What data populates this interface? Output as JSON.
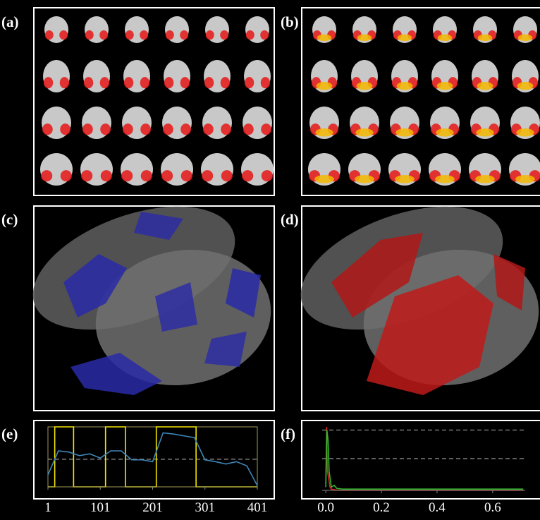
{
  "panel_labels": [
    "(a)",
    "(b)",
    "(c)",
    "(d)",
    "(e)",
    "(f)"
  ],
  "chart_data": [
    {
      "type": "line",
      "xlim": [
        1,
        401
      ],
      "xticks": [
        1,
        101,
        201,
        301,
        401
      ],
      "ylim": [
        0,
        1
      ],
      "reference_lines": [
        0.46
      ],
      "series": [
        {
          "color": "#f2e600",
          "x": [
            1,
            14,
            14,
            50,
            50,
            111,
            111,
            149,
            149,
            208,
            208,
            284,
            284,
            401
          ],
          "values": [
            0,
            0,
            1,
            1,
            0,
            0,
            1,
            1,
            0,
            0,
            1,
            1,
            0,
            0
          ]
        },
        {
          "color": "#3f86b8",
          "x": [
            1,
            21,
            41,
            61,
            81,
            101,
            121,
            141,
            161,
            181,
            201,
            221,
            241,
            261,
            281,
            301,
            321,
            341,
            361,
            381,
            401
          ],
          "values": [
            0.2,
            0.6,
            0.58,
            0.52,
            0.55,
            0.48,
            0.6,
            0.6,
            0.45,
            0.45,
            0.42,
            0.9,
            0.88,
            0.85,
            0.82,
            0.45,
            0.42,
            0.38,
            0.42,
            0.35,
            0.02
          ]
        }
      ]
    },
    {
      "type": "line",
      "xlim": [
        -0.013,
        0.717
      ],
      "xticks": [
        {
          "value": 0,
          "label": "0.0"
        },
        0.2,
        0.4,
        0.6
      ],
      "ylim": [
        0,
        1
      ],
      "reference_lines": [
        0.5,
        0.95
      ],
      "series": [
        {
          "color": "#e02020",
          "x": [
            0,
            0.003,
            0.006,
            0.01,
            0.015,
            0.02,
            0.03,
            0.05,
            0.71
          ],
          "values": [
            0.1,
            1.0,
            0.3,
            0.2,
            0.05,
            0.02,
            0.01,
            0,
            0
          ]
        },
        {
          "color": "#2fb82f",
          "x": [
            0,
            0.004,
            0.008,
            0.012,
            0.02,
            0.03,
            0.04,
            0.06,
            0.71
          ],
          "values": [
            0.05,
            0.95,
            0.8,
            0.3,
            0.05,
            0.08,
            0.03,
            0.02,
            0.02
          ]
        }
      ]
    }
  ]
}
